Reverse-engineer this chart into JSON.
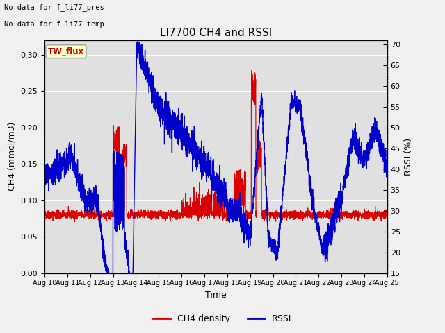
{
  "title": "LI7700 CH4 and RSSI",
  "xlabel": "Time",
  "ylabel_left": "CH4 (mmol/m3)",
  "ylabel_right": "RSSI (%)",
  "annotation_lines": [
    "No data for f_li77_pres",
    "No data for f_li77_temp"
  ],
  "box_label": "TW_flux",
  "box_facecolor": "#ffffcc",
  "box_edgecolor": "#aaaaaa",
  "box_textcolor": "#cc0000",
  "ylim_left": [
    0.0,
    0.32
  ],
  "ylim_right": [
    15,
    71
  ],
  "yticks_left": [
    0.0,
    0.05,
    0.1,
    0.15,
    0.2,
    0.25,
    0.3
  ],
  "yticks_right": [
    15,
    20,
    25,
    30,
    35,
    40,
    45,
    50,
    55,
    60,
    65,
    70
  ],
  "xtick_labels": [
    "Aug 10",
    "Aug 11",
    "Aug 12",
    "Aug 13",
    "Aug 14",
    "Aug 15",
    "Aug 16",
    "Aug 17",
    "Aug 18",
    "Aug 19",
    "Aug 20",
    "Aug 21",
    "Aug 22",
    "Aug 23",
    "Aug 24",
    "Aug 25"
  ],
  "ch4_color": "#dd0000",
  "rssi_color": "#0000cc",
  "legend_labels": [
    "CH4 density",
    "RSSI"
  ],
  "bg_color": "#f0f0f0",
  "plot_bg_color": "#e0e0e0",
  "grid_color": "#ffffff",
  "ch4_linewidth": 0.8,
  "rssi_linewidth": 1.0,
  "n_days": 15,
  "n_points": 3000
}
